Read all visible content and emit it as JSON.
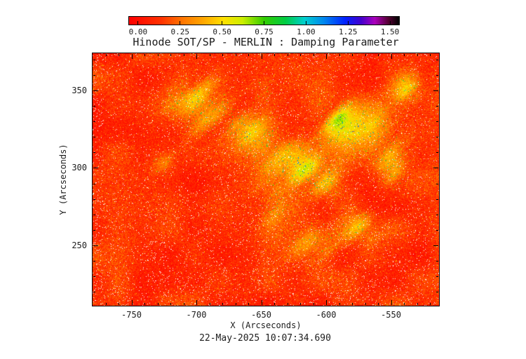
{
  "chart_data": {
    "type": "heatmap",
    "title": "Hinode SOT/SP - MERLIN : Damping Parameter",
    "xlabel": "X (Arcseconds)",
    "ylabel": "Y (Arcseconds)",
    "footer_timestamp": "22-May-2025 10:07:34.690",
    "xlim": [
      -780,
      -513
    ],
    "ylim": [
      211,
      374
    ],
    "xticks": [
      -750,
      -700,
      -650,
      -600,
      -550
    ],
    "yticks": [
      250,
      300,
      350
    ],
    "xtick_labels": [
      "-750",
      "-700",
      "-650",
      "-600",
      "-550"
    ],
    "ytick_labels": [
      "250",
      "300",
      "350"
    ],
    "minor_tick_step_arcsec": 10,
    "grid": false,
    "summary": "Solar raster map, mostly red-orange background (damping values ~0.1-0.3) with yellow-green enhanced patches (~0.4-0.8) arranged diagonally across the upper two-thirds, scattered green/cyan specks and dense white speckle noise throughout, densest near the bottom and left edge.",
    "colorbar": {
      "orientation": "horizontal",
      "position": "top",
      "vmin": 0.0,
      "vmax": 1.5,
      "tick_values": [
        0.0,
        0.25,
        0.5,
        0.75,
        1.0,
        1.25,
        1.5
      ],
      "tick_labels": [
        "0.00",
        "0.25",
        "0.50",
        "0.75",
        "1.00",
        "1.25",
        "1.50"
      ],
      "colormap_stops": [
        [
          0.0,
          "#ff0000"
        ],
        [
          0.12,
          "#ff3300"
        ],
        [
          0.2,
          "#ff7700"
        ],
        [
          0.28,
          "#ffaa00"
        ],
        [
          0.35,
          "#ffe000"
        ],
        [
          0.42,
          "#ccee00"
        ],
        [
          0.5,
          "#33cc00"
        ],
        [
          0.58,
          "#00cc44"
        ],
        [
          0.65,
          "#00cfcf"
        ],
        [
          0.72,
          "#0088ee"
        ],
        [
          0.8,
          "#0022ff"
        ],
        [
          0.86,
          "#4400cc"
        ],
        [
          0.91,
          "#aa00bb"
        ],
        [
          0.96,
          "#550033"
        ],
        [
          1.0,
          "#000000"
        ]
      ]
    },
    "field_model": {
      "seed": 1337,
      "background_level": 0.16,
      "noise_amplitude": 0.08,
      "pixel_noise_amplitude": 0.1,
      "speck_probability": 0.025,
      "white_speckle_probability": 0.018,
      "enhanced_regions": [
        {
          "x": -700,
          "y": 340,
          "sx": 16,
          "sy": 12,
          "amp": 0.32
        },
        {
          "x": -672,
          "y": 333,
          "sx": 10,
          "sy": 8,
          "amp": 0.26
        },
        {
          "x": -727,
          "y": 303,
          "sx": 7,
          "sy": 6,
          "amp": 0.18
        },
        {
          "x": -650,
          "y": 318,
          "sx": 13,
          "sy": 11,
          "amp": 0.3
        },
        {
          "x": -622,
          "y": 301,
          "sx": 13,
          "sy": 11,
          "amp": 0.3
        },
        {
          "x": -590,
          "y": 330,
          "sx": 14,
          "sy": 12,
          "amp": 0.32
        },
        {
          "x": -560,
          "y": 320,
          "sx": 12,
          "sy": 12,
          "amp": 0.3
        },
        {
          "x": -600,
          "y": 293,
          "sx": 11,
          "sy": 9,
          "amp": 0.28
        },
        {
          "x": -643,
          "y": 277,
          "sx": 9,
          "sy": 8,
          "amp": 0.22
        },
        {
          "x": -610,
          "y": 255,
          "sx": 14,
          "sy": 9,
          "amp": 0.22
        },
        {
          "x": -575,
          "y": 262,
          "sx": 10,
          "sy": 8,
          "amp": 0.22
        },
        {
          "x": -650,
          "y": 350,
          "sx": 8,
          "sy": 7,
          "amp": 0.22
        },
        {
          "x": -535,
          "y": 350,
          "sx": 10,
          "sy": 8,
          "amp": 0.25
        },
        {
          "x": -545,
          "y": 295,
          "sx": 8,
          "sy": 9,
          "amp": 0.22
        }
      ]
    }
  }
}
